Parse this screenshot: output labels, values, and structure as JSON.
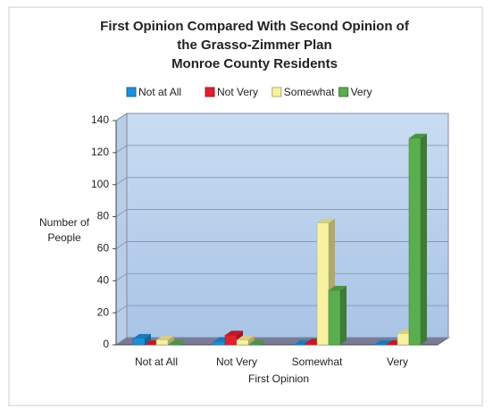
{
  "chart_data": {
    "type": "bar",
    "title": [
      "First Opinion Compared With Second Opinion of",
      "the Grasso-Zimmer Plan",
      "Monroe County Residents"
    ],
    "x_label": "First Opinion",
    "y_label": [
      "Number of",
      "People"
    ],
    "categories": [
      "Not at All",
      "Not Very",
      "Somewhat",
      "Very"
    ],
    "series": [
      {
        "name": "Not at All",
        "color": "#1f8fd8",
        "values": [
          4,
          2,
          0,
          0
        ]
      },
      {
        "name": "Not Very",
        "color": "#e0202e",
        "values": [
          0,
          6,
          1,
          0
        ]
      },
      {
        "name": "Somewhat",
        "color": "#f8f2a0",
        "values": [
          3,
          3,
          76,
          7
        ]
      },
      {
        "name": "Very",
        "color": "#5aae4e",
        "values": [
          0,
          0,
          34,
          129
        ]
      }
    ],
    "ylim": [
      0,
      140
    ],
    "yticks": [
      0,
      20,
      40,
      60,
      80,
      100,
      120,
      140
    ],
    "grid": true,
    "legend": "top"
  }
}
